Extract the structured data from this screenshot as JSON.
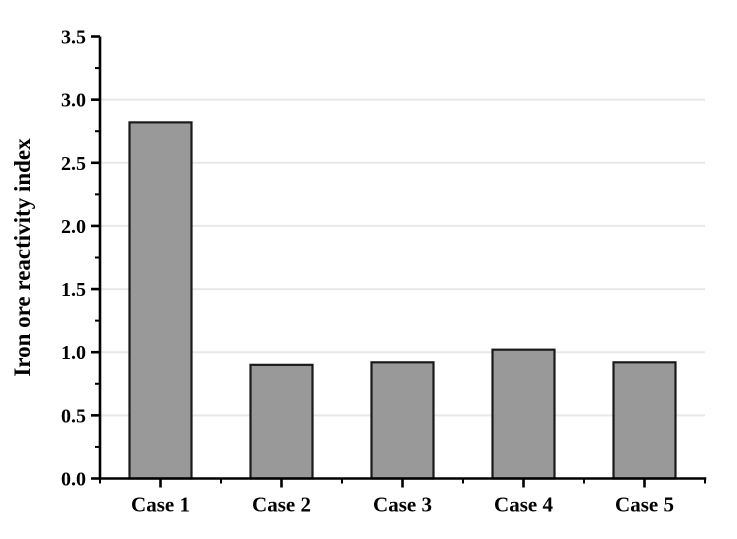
{
  "figure": {
    "background": "#ffffff"
  },
  "chart_data": {
    "type": "bar",
    "title": "",
    "categories": [
      "Case 1",
      "Case 2",
      "Case 3",
      "Case 4",
      "Case 5"
    ],
    "values": [
      2.82,
      0.9,
      0.92,
      1.02,
      0.92
    ],
    "xlabel": "",
    "ylabel": "Iron ore reactivity index",
    "ylim": [
      0,
      3.5
    ],
    "y_major_step": 0.5,
    "y_minor_step": 0.25,
    "y_tick_decimals": 1,
    "grid": "horizontal-major",
    "grid_skip_values": [
      0,
      3.5
    ],
    "legend_position": "none",
    "bar_fill_color": "#999999",
    "bar_edge_color": "#1a1a1a",
    "axis_color": "#000000",
    "grid_color": "#e8e8e8",
    "text_color": "#000000"
  }
}
